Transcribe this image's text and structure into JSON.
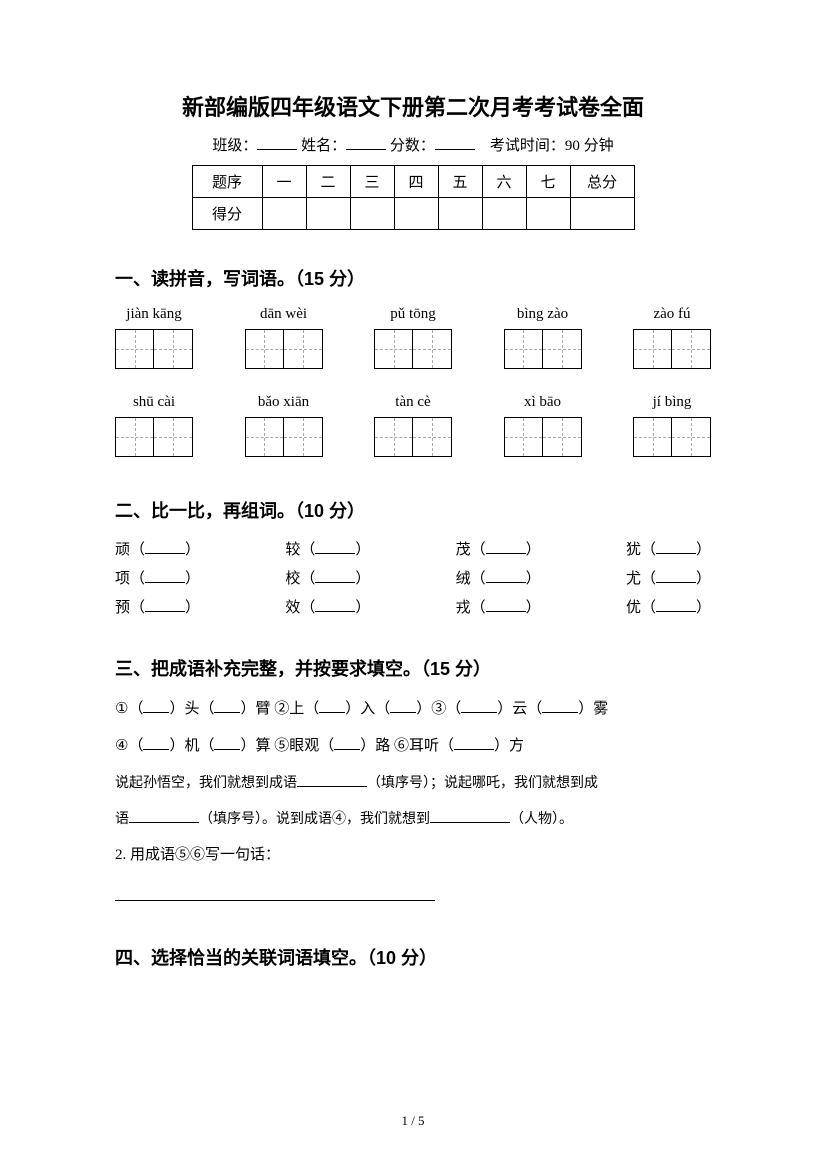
{
  "title": "新部编版四年级语文下册第二次月考考试卷全面",
  "header": {
    "class_label": "班级：",
    "name_label": "姓名：",
    "score_label": "分数：",
    "time_label": "考试时间：90 分钟"
  },
  "score_table": {
    "row1_label": "题序",
    "row2_label": "得分",
    "cols": [
      "一",
      "二",
      "三",
      "四",
      "五",
      "六",
      "七"
    ],
    "total": "总分"
  },
  "section1": {
    "heading": "一、读拼音，写词语。（15 分）",
    "row1": [
      {
        "pinyin": "jiàn kāng",
        "cells": 2
      },
      {
        "pinyin": "dān wèi",
        "cells": 2
      },
      {
        "pinyin": "pǔ tōng",
        "cells": 2
      },
      {
        "pinyin": "bìng zào",
        "cells": 2
      },
      {
        "pinyin": "zào fú",
        "cells": 2
      }
    ],
    "row2": [
      {
        "pinyin": "shū cài",
        "cells": 2
      },
      {
        "pinyin": "bǎo xiān",
        "cells": 2
      },
      {
        "pinyin": "tàn cè",
        "cells": 2
      },
      {
        "pinyin": "xì bāo",
        "cells": 2
      },
      {
        "pinyin": "jí bìng",
        "cells": 2
      }
    ]
  },
  "section2": {
    "heading": "二、比一比，再组词。（10 分）",
    "rows": [
      [
        "顽",
        "较",
        "茂",
        "犹"
      ],
      [
        "项",
        "校",
        "绒",
        "尤"
      ],
      [
        "预",
        "效",
        "戎",
        "优"
      ]
    ]
  },
  "section3": {
    "heading": "三、把成语补充完整，并按要求填空。（15 分）",
    "line1_parts": {
      "p1": "①（",
      "p2": "）头（",
      "p3": "）臂  ②上（",
      "p4": "）入（",
      "p5": "）③（",
      "p6": "）云（",
      "p7": "）雾"
    },
    "line2_parts": {
      "p1": "④（",
      "p2": "）机（",
      "p3": "）算   ⑤眼观（",
      "p4": "）路    ⑥耳听（",
      "p5": "）方"
    },
    "sentence1_a": "说起孙悟空，我们就想到成语",
    "sentence1_b": "（填序号）；说起哪吒，我们就想到成",
    "sentence2_a": "语",
    "sentence2_b": "（填序号）。说到成语④，我们就想到",
    "sentence2_c": "（人物）。",
    "q2": "2. 用成语⑤⑥写一句话："
  },
  "section4": {
    "heading": "四、选择恰当的关联词语填空。（10 分）"
  },
  "footer": "1 / 5"
}
